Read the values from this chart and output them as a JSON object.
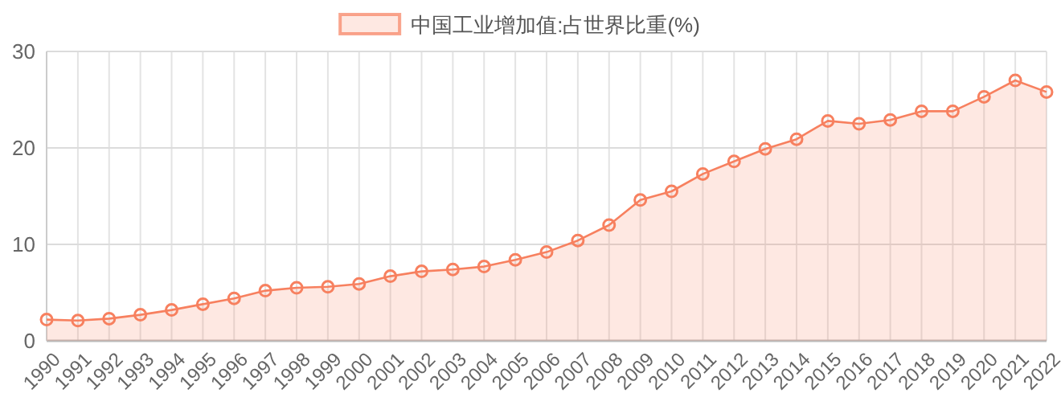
{
  "chart_data": {
    "type": "area",
    "categories": [
      "1990",
      "1991",
      "1992",
      "1993",
      "1994",
      "1995",
      "1996",
      "1997",
      "1998",
      "1999",
      "2000",
      "2001",
      "2002",
      "2003",
      "2004",
      "2005",
      "2006",
      "2007",
      "2008",
      "2009",
      "2010",
      "2011",
      "2012",
      "2013",
      "2014",
      "2015",
      "2016",
      "2017",
      "2018",
      "2019",
      "2020",
      "2021",
      "2022"
    ],
    "series": [
      {
        "name": "中国工业增加值:占世界比重(%)",
        "color": "#f7805f",
        "values": [
          2.2,
          2.1,
          2.3,
          2.7,
          3.2,
          3.8,
          4.4,
          5.2,
          5.5,
          5.6,
          5.9,
          6.7,
          7.2,
          7.4,
          7.7,
          8.4,
          9.2,
          10.4,
          12.0,
          14.6,
          15.5,
          17.3,
          18.6,
          19.9,
          20.9,
          22.8,
          22.5,
          22.9,
          23.8,
          23.8,
          25.3,
          27.0,
          25.8
        ]
      }
    ],
    "ylim": [
      0,
      30
    ],
    "yticks": [
      0,
      10,
      20,
      30
    ],
    "grid": true,
    "legend": "top",
    "marker": "circle",
    "line_style": "solid"
  }
}
